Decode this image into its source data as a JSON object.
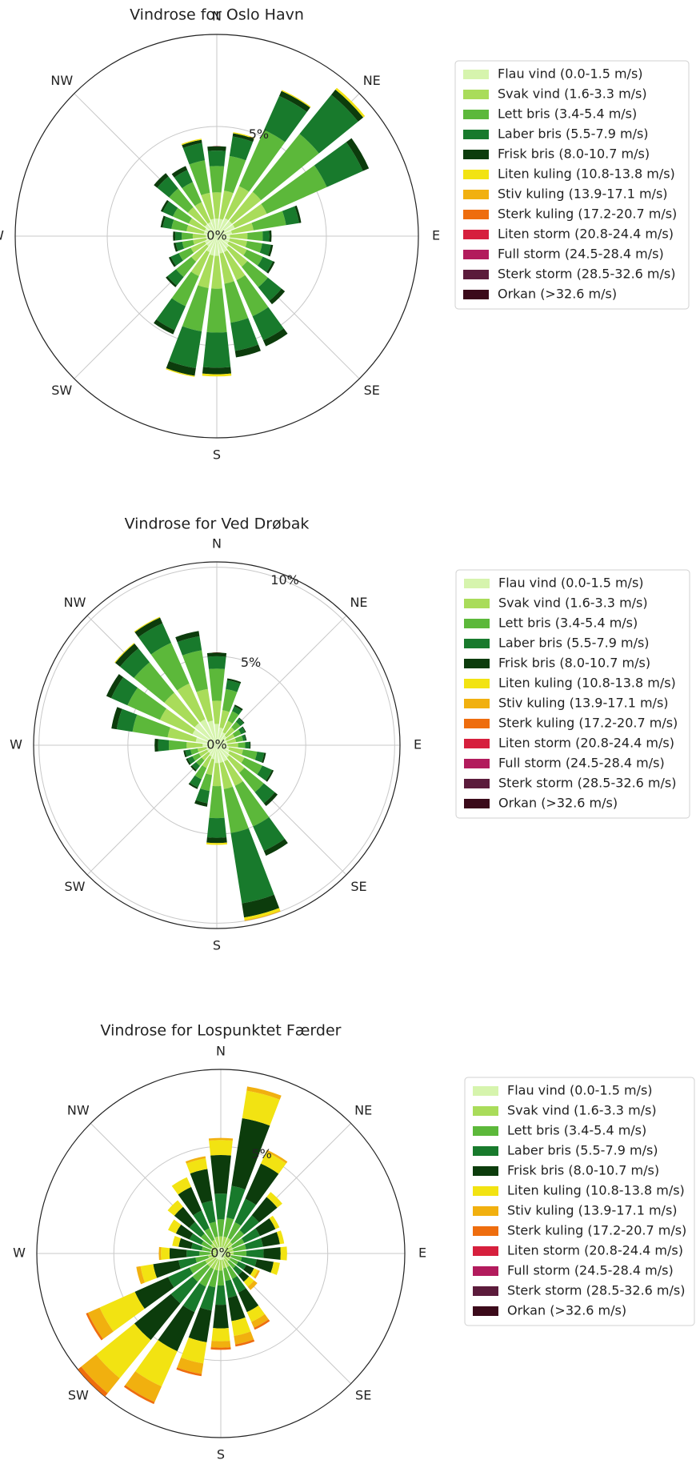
{
  "chart_data": [
    {
      "type": "windrose",
      "title": "Vindrose for Oslo Havn",
      "directions": [
        "N",
        "NE",
        "E",
        "SE",
        "S",
        "SW",
        "W",
        "NW"
      ],
      "rlim": [
        0,
        9.2
      ],
      "rticks": [
        {
          "value": 0,
          "label": "0%"
        },
        {
          "value": 5,
          "label": "5%"
        }
      ],
      "series": [
        {
          "name": "Flau vind (0.0-1.5 m/s)",
          "color": "#d6f4ad",
          "values": [
            0.8,
            0.8,
            0.9,
            0.9,
            0.9,
            0.7,
            0.6,
            0.6,
            0.6,
            0.7,
            0.8,
            0.8,
            0.9,
            0.9,
            0.8,
            0.6,
            0.6,
            0.5,
            0.5,
            0.6,
            0.6,
            0.7,
            0.7,
            0.8
          ]
        },
        {
          "name": "Svak vind (1.6-3.3 m/s)",
          "color": "#a9dc5a",
          "values": [
            1.2,
            1.3,
            1.6,
            1.7,
            1.6,
            1.0,
            0.8,
            0.8,
            0.9,
            1.1,
            1.4,
            1.4,
            1.5,
            1.5,
            1.2,
            0.9,
            0.7,
            0.6,
            0.6,
            0.8,
            0.8,
            1.0,
            1.0,
            1.2
          ]
        },
        {
          "name": "Lett bris (3.4-5.4 m/s)",
          "color": "#5cb83a",
          "values": [
            1.2,
            1.6,
            2.8,
            3.4,
            3.0,
            1.5,
            0.7,
            0.7,
            0.8,
            1.2,
            1.8,
            1.8,
            2.0,
            2.0,
            1.5,
            0.9,
            0.6,
            0.5,
            0.5,
            0.7,
            0.8,
            1.1,
            1.0,
            1.5
          ]
        },
        {
          "name": "Laber bris (5.5-7.9 m/s)",
          "color": "#187a2c",
          "values": [
            0.7,
            0.9,
            1.7,
            2.3,
            1.8,
            0.6,
            0.3,
            0.4,
            0.5,
            0.8,
            1.2,
            1.3,
            1.6,
            1.7,
            1.2,
            0.5,
            0.4,
            0.3,
            0.3,
            0.4,
            0.5,
            0.7,
            0.6,
            0.8
          ]
        },
        {
          "name": "Frisk bris (8.0-10.7 m/s)",
          "color": "#0c3c0c",
          "values": [
            0.2,
            0.15,
            0.25,
            0.3,
            0.3,
            0.1,
            0.1,
            0.1,
            0.1,
            0.2,
            0.3,
            0.3,
            0.3,
            0.35,
            0.2,
            0.1,
            0.1,
            0.1,
            0.1,
            0.1,
            0.1,
            0.2,
            0.2,
            0.15
          ]
        },
        {
          "name": "Liten kuling (10.8-13.8 m/s)",
          "color": "#f2e312",
          "values": [
            0,
            0.05,
            0.05,
            0.1,
            0,
            0,
            0,
            0,
            0,
            0,
            0,
            0,
            0.1,
            0.05,
            0,
            0,
            0,
            0,
            0,
            0,
            0,
            0,
            0,
            0.05
          ]
        },
        {
          "name": "Stiv kuling (13.9-17.1 m/s)",
          "color": "#f1b00f",
          "values": [
            0,
            0,
            0,
            0,
            0,
            0,
            0,
            0,
            0,
            0,
            0,
            0,
            0,
            0,
            0,
            0,
            0,
            0,
            0,
            0,
            0,
            0,
            0,
            0
          ]
        },
        {
          "name": "Sterk kuling (17.2-20.7 m/s)",
          "color": "#ee6d0e",
          "values": [
            0,
            0,
            0,
            0,
            0,
            0,
            0,
            0,
            0,
            0,
            0,
            0,
            0,
            0,
            0,
            0,
            0,
            0,
            0,
            0,
            0,
            0,
            0,
            0
          ]
        },
        {
          "name": "Liten storm (20.8-24.4 m/s)",
          "color": "#d61f3d",
          "values": [
            0,
            0,
            0,
            0,
            0,
            0,
            0,
            0,
            0,
            0,
            0,
            0,
            0,
            0,
            0,
            0,
            0,
            0,
            0,
            0,
            0,
            0,
            0,
            0
          ]
        },
        {
          "name": "Full storm (24.5-28.4 m/s)",
          "color": "#b21b5c",
          "values": [
            0,
            0,
            0,
            0,
            0,
            0,
            0,
            0,
            0,
            0,
            0,
            0,
            0,
            0,
            0,
            0,
            0,
            0,
            0,
            0,
            0,
            0,
            0,
            0
          ]
        },
        {
          "name": "Sterk storm (28.5-32.6 m/s)",
          "color": "#5b1b3b",
          "values": [
            0,
            0,
            0,
            0,
            0,
            0,
            0,
            0,
            0,
            0,
            0,
            0,
            0,
            0,
            0,
            0,
            0,
            0,
            0,
            0,
            0,
            0,
            0,
            0
          ]
        },
        {
          "name": "Orkan (>32.6 m/s)",
          "color": "#3b0a1a",
          "values": [
            0,
            0,
            0,
            0,
            0,
            0,
            0,
            0,
            0,
            0,
            0,
            0,
            0,
            0,
            0,
            0,
            0,
            0,
            0,
            0,
            0,
            0,
            0,
            0
          ]
        }
      ]
    },
    {
      "type": "windrose",
      "title": "Vindrose for Ved Drøbak",
      "directions": [
        "N",
        "NE",
        "E",
        "SE",
        "S",
        "SW",
        "W",
        "NW"
      ],
      "rlim": [
        0,
        10.3
      ],
      "rticks": [
        {
          "value": 0,
          "label": "0%"
        },
        {
          "value": 5,
          "label": "5%"
        },
        {
          "value": 10,
          "label": "10%"
        }
      ],
      "series": [
        {
          "name": "Flau vind (0.0-1.5 m/s)",
          "color": "#d6f4ad",
          "values": [
            1.2,
            1.0,
            0.8,
            0.7,
            0.6,
            0.6,
            0.6,
            0.7,
            0.8,
            0.9,
            1.0,
            1.0,
            1.0,
            0.8,
            0.7,
            0.6,
            0.6,
            0.6,
            0.8,
            1.2,
            1.5,
            1.6,
            1.6,
            1.4
          ]
        },
        {
          "name": "Svak vind (1.6-3.3 m/s)",
          "color": "#a9dc5a",
          "values": [
            1.3,
            1.0,
            0.7,
            0.6,
            0.5,
            0.5,
            0.6,
            0.8,
            0.9,
            1.1,
            1.5,
            1.5,
            1.3,
            0.9,
            0.7,
            0.5,
            0.5,
            0.5,
            0.9,
            1.6,
            2.0,
            2.2,
            2.2,
            1.8
          ]
        },
        {
          "name": "Lett bris (3.4-5.4 m/s)",
          "color": "#5cb83a",
          "values": [
            1.8,
            1.2,
            0.6,
            0.4,
            0.4,
            0.4,
            0.4,
            0.8,
            1.1,
            1.4,
            2.5,
            2.5,
            1.8,
            0.9,
            0.7,
            0.4,
            0.4,
            0.4,
            1.0,
            2.0,
            2.0,
            2.2,
            2.5,
            2.2
          ]
        },
        {
          "name": "Laber bris (5.5-7.9 m/s)",
          "color": "#187a2c",
          "values": [
            0.7,
            0.5,
            0.3,
            0.25,
            0.25,
            0.15,
            0.25,
            0.4,
            0.6,
            0.8,
            1.5,
            4.0,
            1.1,
            0.7,
            0.5,
            0.3,
            0.3,
            0.3,
            0.6,
            0.9,
            1.0,
            1.0,
            1.2,
            0.8
          ]
        },
        {
          "name": "Frisk bris (8.0-10.7 m/s)",
          "color": "#0c3c0c",
          "values": [
            0.2,
            0.1,
            0.1,
            0.05,
            0.05,
            0.05,
            0.05,
            0.1,
            0.1,
            0.2,
            0.3,
            0.8,
            0.3,
            0.2,
            0.1,
            0.1,
            0.1,
            0.1,
            0.2,
            0.3,
            0.3,
            0.35,
            0.35,
            0.3
          ]
        },
        {
          "name": "Liten kuling (10.8-13.8 m/s)",
          "color": "#f2e312",
          "values": [
            0,
            0,
            0,
            0,
            0,
            0,
            0,
            0,
            0,
            0,
            0,
            0.15,
            0.1,
            0,
            0,
            0,
            0,
            0,
            0,
            0,
            0,
            0.05,
            0.05,
            0
          ]
        },
        {
          "name": "Stiv kuling (13.9-17.1 m/s)",
          "color": "#f1b00f",
          "values": [
            0,
            0,
            0,
            0,
            0,
            0,
            0,
            0,
            0,
            0,
            0,
            0.05,
            0,
            0,
            0,
            0,
            0,
            0,
            0,
            0,
            0,
            0,
            0,
            0
          ]
        },
        {
          "name": "Sterk kuling (17.2-20.7 m/s)",
          "color": "#ee6d0e",
          "values": [
            0,
            0,
            0,
            0,
            0,
            0,
            0,
            0,
            0,
            0,
            0,
            0,
            0,
            0,
            0,
            0,
            0,
            0,
            0,
            0,
            0,
            0,
            0,
            0
          ]
        },
        {
          "name": "Liten storm (20.8-24.4 m/s)",
          "color": "#d61f3d",
          "values": [
            0,
            0,
            0,
            0,
            0,
            0,
            0,
            0,
            0,
            0,
            0,
            0,
            0,
            0,
            0,
            0,
            0,
            0,
            0,
            0,
            0,
            0,
            0,
            0
          ]
        },
        {
          "name": "Full storm (24.5-28.4 m/s)",
          "color": "#b21b5c",
          "values": [
            0,
            0,
            0,
            0,
            0,
            0,
            0,
            0,
            0,
            0,
            0,
            0,
            0,
            0,
            0,
            0,
            0,
            0,
            0,
            0,
            0,
            0,
            0,
            0
          ]
        },
        {
          "name": "Sterk storm (28.5-32.6 m/s)",
          "color": "#5b1b3b",
          "values": [
            0,
            0,
            0,
            0,
            0,
            0,
            0,
            0,
            0,
            0,
            0,
            0,
            0,
            0,
            0,
            0,
            0,
            0,
            0,
            0,
            0,
            0,
            0,
            0
          ]
        },
        {
          "name": "Orkan (>32.6 m/s)",
          "color": "#3b0a1a",
          "values": [
            0,
            0,
            0,
            0,
            0,
            0,
            0,
            0,
            0,
            0,
            0,
            0,
            0,
            0,
            0,
            0,
            0,
            0,
            0,
            0,
            0,
            0,
            0,
            0
          ]
        }
      ]
    },
    {
      "type": "windrose",
      "title": "Vindrose for Lospunktet Færder",
      "directions": [
        "N",
        "NE",
        "E",
        "SE",
        "S",
        "SW",
        "W",
        "NW"
      ],
      "rlim": [
        0,
        8.6
      ],
      "rticks": [
        {
          "value": 0,
          "label": "0%"
        },
        {
          "value": 5,
          "label": "5%"
        }
      ],
      "series": [
        {
          "name": "Flau vind (0.0-1.5 m/s)",
          "color": "#d6f4ad",
          "values": [
            0.3,
            0.3,
            0.3,
            0.3,
            0.2,
            0.2,
            0.2,
            0.2,
            0.2,
            0.2,
            0.3,
            0.3,
            0.3,
            0.3,
            0.3,
            0.3,
            0.3,
            0.2,
            0.2,
            0.2,
            0.2,
            0.2,
            0.3,
            0.3
          ]
        },
        {
          "name": "Svak vind (1.6-3.3 m/s)",
          "color": "#a9dc5a",
          "values": [
            0.5,
            0.5,
            0.5,
            0.4,
            0.4,
            0.4,
            0.4,
            0.3,
            0.3,
            0.3,
            0.4,
            0.4,
            0.5,
            0.5,
            0.5,
            0.5,
            0.5,
            0.4,
            0.3,
            0.3,
            0.3,
            0.4,
            0.4,
            0.5
          ]
        },
        {
          "name": "Lett bris (3.4-5.4 m/s)",
          "color": "#5cb83a",
          "values": [
            0.8,
            0.9,
            0.8,
            0.7,
            0.6,
            0.6,
            0.6,
            0.5,
            0.4,
            0.4,
            0.6,
            0.6,
            0.7,
            0.8,
            0.9,
            0.9,
            0.8,
            0.6,
            0.5,
            0.4,
            0.5,
            0.6,
            0.6,
            0.7
          ]
        },
        {
          "name": "Laber bris (5.5-7.9 m/s)",
          "color": "#187a2c",
          "values": [
            1.2,
            1.5,
            1.2,
            0.9,
            0.8,
            0.8,
            0.8,
            0.7,
            0.4,
            0.4,
            0.7,
            0.8,
            0.9,
            1.1,
            1.3,
            1.3,
            1.1,
            0.8,
            0.6,
            0.5,
            0.6,
            0.7,
            0.9,
            1.0
          ]
        },
        {
          "name": "Frisk bris (8.0-10.7 m/s)",
          "color": "#0c3c0c",
          "values": [
            1.8,
            3.2,
            1.8,
            1.1,
            0.8,
            0.8,
            0.8,
            0.8,
            0.4,
            0.4,
            1.0,
            1.1,
            1.1,
            1.5,
            2.0,
            2.2,
            1.7,
            1.2,
            0.8,
            0.6,
            0.7,
            0.9,
            1.2,
            1.5
          ]
        },
        {
          "name": "Liten kuling (10.8-13.8 m/s)",
          "color": "#f2e312",
          "values": [
            0.7,
            1.3,
            0.6,
            0.3,
            0.2,
            0.2,
            0.3,
            0.3,
            0.2,
            0.3,
            0.5,
            0.7,
            0.6,
            1.0,
            1.8,
            2.3,
            1.8,
            0.6,
            0.4,
            0.3,
            0.4,
            0.4,
            0.5,
            0.5
          ]
        },
        {
          "name": "Stiv kuling (13.9-17.1 m/s)",
          "color": "#f1b00f",
          "values": [
            0.1,
            0.2,
            0.1,
            0,
            0,
            0,
            0,
            0,
            0.1,
            0.2,
            0.3,
            0.4,
            0.3,
            0.5,
            0.8,
            0.9,
            0.6,
            0.2,
            0.1,
            0,
            0,
            0,
            0,
            0.1
          ]
        },
        {
          "name": "Sterk kuling (17.2-20.7 m/s)",
          "color": "#ee6d0e",
          "values": [
            0,
            0,
            0,
            0,
            0,
            0,
            0,
            0,
            0,
            0,
            0.1,
            0.1,
            0.1,
            0.1,
            0.1,
            0.2,
            0.1,
            0,
            0,
            0,
            0,
            0,
            0,
            0
          ]
        },
        {
          "name": "Liten storm (20.8-24.4 m/s)",
          "color": "#d61f3d",
          "values": [
            0,
            0,
            0,
            0,
            0,
            0,
            0,
            0,
            0,
            0,
            0,
            0,
            0,
            0,
            0,
            0,
            0,
            0,
            0,
            0,
            0,
            0,
            0,
            0
          ]
        },
        {
          "name": "Full storm (24.5-28.4 m/s)",
          "color": "#b21b5c",
          "values": [
            0,
            0,
            0,
            0,
            0,
            0,
            0,
            0,
            0,
            0,
            0,
            0,
            0,
            0,
            0,
            0,
            0,
            0,
            0,
            0,
            0,
            0,
            0,
            0
          ]
        },
        {
          "name": "Sterk storm (28.5-32.6 m/s)",
          "color": "#5b1b3b",
          "values": [
            0,
            0,
            0,
            0,
            0,
            0,
            0,
            0,
            0,
            0,
            0,
            0,
            0,
            0,
            0,
            0,
            0,
            0,
            0,
            0,
            0,
            0,
            0,
            0
          ]
        },
        {
          "name": "Orkan (>32.6 m/s)",
          "color": "#3b0a1a",
          "values": [
            0,
            0,
            0,
            0,
            0,
            0,
            0,
            0,
            0,
            0,
            0,
            0,
            0,
            0,
            0,
            0,
            0,
            0,
            0,
            0,
            0,
            0,
            0,
            0
          ]
        }
      ]
    }
  ]
}
